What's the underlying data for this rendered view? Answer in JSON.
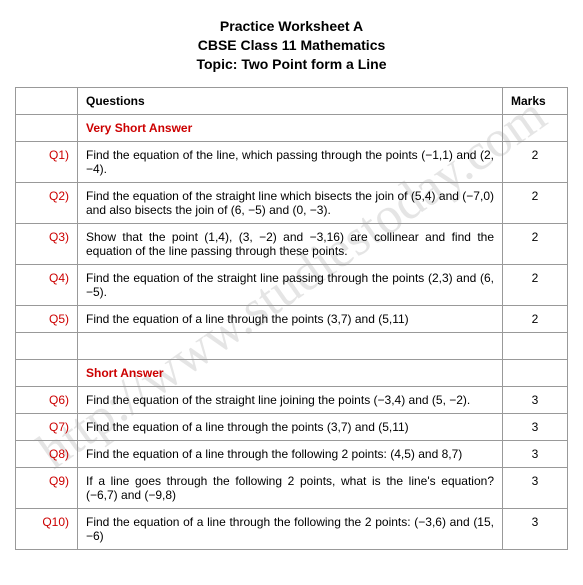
{
  "header": {
    "line1": "Practice Worksheet A",
    "line2": "CBSE Class 11 Mathematics",
    "line3": "Topic: Two Point form a Line"
  },
  "watermark": "http://www.studiestoday.com",
  "columns": {
    "questions": "Questions",
    "marks": "Marks"
  },
  "sections": [
    {
      "title": "Very Short Answer",
      "rows": [
        {
          "q": "Q1)",
          "text": "Find the equation of the line, which passing through the points (−1,1) and (2, −4).",
          "marks": "2"
        },
        {
          "q": "Q2)",
          "text": "Find the equation of the straight line which bisects the join of (5,4) and (−7,0) and also bisects the join of (6, −5) and (0, −3).",
          "marks": "2"
        },
        {
          "q": "Q3)",
          "text": "Show that the point (1,4), (3, −2) and −3,16) are collinear and find the equation of the line passing through these points.",
          "marks": "2"
        },
        {
          "q": "Q4)",
          "text": "Find the equation of the straight line passing through the points (2,3) and (6, −5).",
          "marks": "2"
        },
        {
          "q": "Q5)",
          "text": "Find the equation of a line through the points (3,7) and (5,11)",
          "marks": "2"
        }
      ]
    },
    {
      "title": "Short Answer",
      "rows": [
        {
          "q": "Q6)",
          "text": "Find the equation of the straight line joining the points (−3,4) and (5, −2).",
          "marks": "3"
        },
        {
          "q": "Q7)",
          "text": "Find the equation of a line through the points (3,7) and (5,11)",
          "marks": "3"
        },
        {
          "q": "Q8)",
          "text": "Find the equation of a line through the following 2 points: (4,5) and 8,7)",
          "marks": "3"
        },
        {
          "q": "Q9)",
          "text": "If a line goes through the following 2 points, what is the line's equation? (−6,7) and (−9,8)",
          "marks": "3"
        },
        {
          "q": "Q10)",
          "text": "Find the equation of a line through the following the 2 points: (−3,6) and (15, −6)",
          "marks": "3"
        }
      ]
    }
  ],
  "colors": {
    "section_title": "#cc0000",
    "qnum": "#cc0000",
    "border": "#999999",
    "background": "#ffffff"
  }
}
